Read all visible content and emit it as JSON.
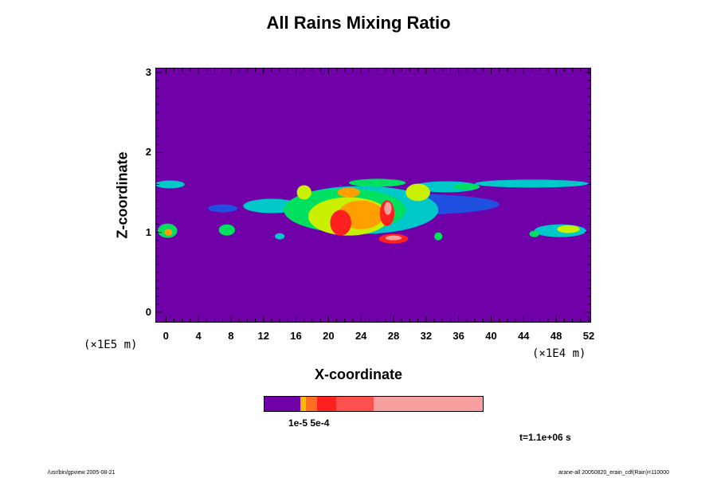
{
  "chart_data": {
    "type": "heatmap",
    "title": "All Rains Mixing Ratio",
    "xlabel": "X-coordinate",
    "ylabel": "Z-coordinate",
    "x_unit": "(×1E4 m)",
    "y_unit": "(×1E5 m)",
    "xlim": [
      -1.2,
      52.2
    ],
    "ylim": [
      -0.12,
      3.05
    ],
    "x_ticks": [
      "0",
      "4",
      "8",
      "12",
      "16",
      "20",
      "24",
      "28",
      "32",
      "36",
      "40",
      "44",
      "48",
      "52"
    ],
    "y_ticks": [
      "0",
      "1",
      "2",
      "3"
    ],
    "background_color": "#7000a8",
    "levels": [
      {
        "color": "#7000a8"
      },
      {
        "color": "#2050e0"
      },
      {
        "color": "#00c8c8"
      },
      {
        "color": "#00e060"
      },
      {
        "color": "#c8f000"
      },
      {
        "color": "#ffa000"
      },
      {
        "color": "#ff2020"
      },
      {
        "color": "#f8a0a0"
      }
    ],
    "features": [
      {
        "level": 2,
        "x": 0.5,
        "y": 1.6,
        "rx": 1.8,
        "rz": 0.05
      },
      {
        "level": 3,
        "x": 0.2,
        "y": 1.02,
        "rx": 1.2,
        "rz": 0.09
      },
      {
        "level": 5,
        "x": 0.3,
        "y": 1.0,
        "rx": 0.5,
        "rz": 0.04
      },
      {
        "level": 3,
        "x": 7.5,
        "y": 1.03,
        "rx": 1.0,
        "rz": 0.07
      },
      {
        "level": 2,
        "x": 14.0,
        "y": 0.95,
        "rx": 0.6,
        "rz": 0.04
      },
      {
        "level": 1,
        "x": 7.0,
        "y": 1.3,
        "rx": 1.8,
        "rz": 0.05
      },
      {
        "level": 1,
        "x": 30.0,
        "y": 1.35,
        "rx": 11.0,
        "rz": 0.13
      },
      {
        "level": 2,
        "x": 13.0,
        "y": 1.33,
        "rx": 3.5,
        "rz": 0.09
      },
      {
        "level": 2,
        "x": 24.0,
        "y": 1.28,
        "rx": 9.5,
        "rz": 0.3
      },
      {
        "level": 3,
        "x": 22.0,
        "y": 1.28,
        "rx": 7.5,
        "rz": 0.27
      },
      {
        "level": 4,
        "x": 22.5,
        "y": 1.2,
        "rx": 5.0,
        "rz": 0.24
      },
      {
        "level": 5,
        "x": 24.0,
        "y": 1.22,
        "rx": 2.8,
        "rz": 0.18
      },
      {
        "level": 6,
        "x": 21.5,
        "y": 1.12,
        "rx": 1.3,
        "rz": 0.16
      },
      {
        "level": 6,
        "x": 27.2,
        "y": 1.24,
        "rx": 0.9,
        "rz": 0.16
      },
      {
        "level": 7,
        "x": 27.3,
        "y": 1.3,
        "rx": 0.45,
        "rz": 0.08
      },
      {
        "level": 6,
        "x": 28.0,
        "y": 0.92,
        "rx": 1.8,
        "rz": 0.06
      },
      {
        "level": 7,
        "x": 28.0,
        "y": 0.93,
        "rx": 1.0,
        "rz": 0.03
      },
      {
        "level": 3,
        "x": 33.5,
        "y": 0.95,
        "rx": 0.5,
        "rz": 0.05
      },
      {
        "level": 2,
        "x": 34.5,
        "y": 1.57,
        "rx": 4.0,
        "rz": 0.07
      },
      {
        "level": 3,
        "x": 37.0,
        "y": 1.57,
        "rx": 1.6,
        "rz": 0.04
      },
      {
        "level": 2,
        "x": 45.0,
        "y": 1.61,
        "rx": 7.0,
        "rz": 0.05
      },
      {
        "level": 2,
        "x": 48.5,
        "y": 1.02,
        "rx": 3.2,
        "rz": 0.08
      },
      {
        "level": 4,
        "x": 49.5,
        "y": 1.04,
        "rx": 1.4,
        "rz": 0.05
      },
      {
        "level": 3,
        "x": 45.3,
        "y": 0.98,
        "rx": 0.6,
        "rz": 0.04
      },
      {
        "level": 4,
        "x": 17.0,
        "y": 1.5,
        "rx": 0.9,
        "rz": 0.09
      },
      {
        "level": 4,
        "x": 31.0,
        "y": 1.5,
        "rx": 1.5,
        "rz": 0.11
      },
      {
        "level": 3,
        "x": 26.0,
        "y": 1.62,
        "rx": 3.5,
        "rz": 0.05
      },
      {
        "level": 5,
        "x": 22.5,
        "y": 1.5,
        "rx": 1.4,
        "rz": 0.06
      }
    ]
  },
  "legend": {
    "label": "1e-5 5e-4",
    "colors": [
      "#7000a8",
      "#ffa000",
      "#f0c000",
      "#ff7020",
      "#ff2020",
      "#ff5050",
      "#f8a0a0"
    ],
    "fractions": [
      0.165,
      0.005,
      0.02,
      0.05,
      0.09,
      0.17,
      0.5
    ]
  },
  "time_label": "t=1.1e+06 s",
  "footer": {
    "left": "/usr/bin/gpview 2005-08-21",
    "right": "arane-all 20050820_erain_cdf(Rain)=110000"
  }
}
